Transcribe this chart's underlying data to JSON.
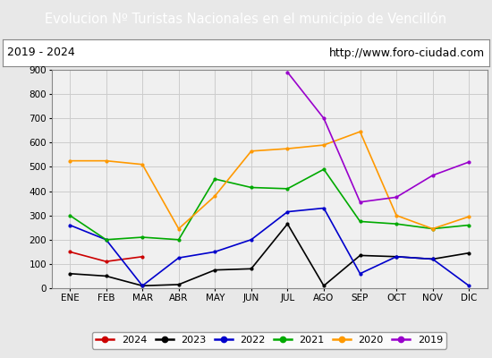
{
  "title": "Evolucion Nº Turistas Nacionales en el municipio de Vencillón",
  "subtitle_left": "2019 - 2024",
  "subtitle_right": "http://www.foro-ciudad.com",
  "title_bg_color": "#4a90d9",
  "title_text_color": "#ffffff",
  "months": [
    "ENE",
    "FEB",
    "MAR",
    "ABR",
    "MAY",
    "JUN",
    "JUL",
    "AGO",
    "SEP",
    "OCT",
    "NOV",
    "DIC"
  ],
  "series": {
    "2024": {
      "color": "#cc0000",
      "data": [
        150,
        110,
        130,
        null,
        null,
        null,
        null,
        null,
        null,
        null,
        null,
        null
      ]
    },
    "2023": {
      "color": "#000000",
      "data": [
        60,
        50,
        10,
        15,
        75,
        80,
        265,
        10,
        135,
        130,
        120,
        145
      ]
    },
    "2022": {
      "color": "#0000cc",
      "data": [
        260,
        200,
        10,
        125,
        150,
        200,
        315,
        330,
        60,
        130,
        120,
        10
      ]
    },
    "2021": {
      "color": "#00aa00",
      "data": [
        300,
        200,
        210,
        200,
        450,
        415,
        410,
        490,
        275,
        265,
        245,
        260
      ]
    },
    "2020": {
      "color": "#ff9900",
      "data": [
        525,
        525,
        510,
        245,
        380,
        565,
        575,
        590,
        645,
        300,
        245,
        295
      ]
    },
    "2019": {
      "color": "#9900cc",
      "data": [
        null,
        null,
        null,
        null,
        null,
        null,
        890,
        700,
        355,
        375,
        465,
        520
      ]
    }
  },
  "ylim": [
    0,
    900
  ],
  "yticks": [
    0,
    100,
    200,
    300,
    400,
    500,
    600,
    700,
    800,
    900
  ],
  "grid_color": "#cccccc",
  "outer_bg_color": "#e8e8e8",
  "plot_bg_color": "#f0f0f0",
  "legend_order": [
    "2024",
    "2023",
    "2022",
    "2021",
    "2020",
    "2019"
  ]
}
